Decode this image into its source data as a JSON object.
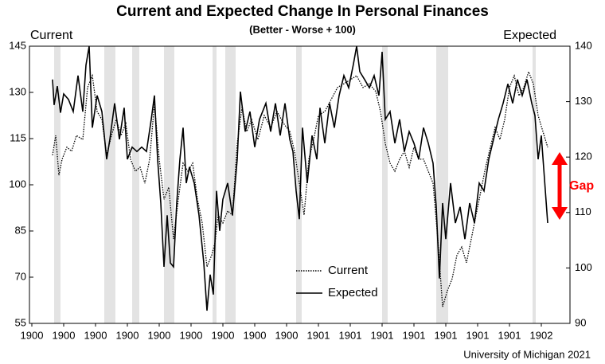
{
  "chart_data": {
    "type": "line",
    "title": "Current and Expected Change In Personal Finances",
    "subtitle": "(Better - Worse + 100)",
    "ylabel": "Current",
    "y2label": "Expected",
    "annotation": "Gap",
    "source": "University of Michigan 2021",
    "xlim": [
      -0.075,
      16.9
    ],
    "xticks": [
      {
        "value": 0,
        "label": "1900"
      },
      {
        "value": 1,
        "label": "1900"
      },
      {
        "value": 2,
        "label": "1900"
      },
      {
        "value": 3,
        "label": "1900"
      },
      {
        "value": 4,
        "label": "1900"
      },
      {
        "value": 5,
        "label": "1900"
      },
      {
        "value": 6,
        "label": "1900"
      },
      {
        "value": 7,
        "label": "1900"
      },
      {
        "value": 8,
        "label": "1900"
      },
      {
        "value": 9,
        "label": "1901"
      },
      {
        "value": 10,
        "label": "1901"
      },
      {
        "value": 11,
        "label": "1901"
      },
      {
        "value": 12,
        "label": "1901"
      },
      {
        "value": 13,
        "label": "1901"
      },
      {
        "value": 14,
        "label": "1901"
      },
      {
        "value": 15,
        "label": "1901"
      },
      {
        "value": 16,
        "label": "1902"
      }
    ],
    "ylim": [
      55,
      145
    ],
    "yticks": [
      55,
      70,
      85,
      100,
      115,
      130,
      145
    ],
    "y2lim": [
      90,
      140
    ],
    "y2ticks": [
      90,
      100,
      110,
      120,
      130,
      140
    ],
    "recessions": [
      [
        0.7,
        0.9
      ],
      [
        2.275,
        2.625
      ],
      [
        3.15,
        3.375
      ],
      [
        4.15,
        4.475
      ],
      [
        5.675,
        5.8
      ],
      [
        6.075,
        6.4
      ],
      [
        8.3,
        8.475
      ],
      [
        11,
        11.175
      ],
      [
        12.7,
        13.075
      ],
      [
        15.725,
        15.825
      ]
    ],
    "recession_color": "#e3e3e3",
    "annotation_color": "#ff0000",
    "series": [
      {
        "name": "Current",
        "color": "#000000",
        "style": "dotted",
        "axis": "y",
        "x": [
          0.65,
          0.75,
          0.85,
          0.95,
          1.1,
          1.25,
          1.4,
          1.6,
          1.75,
          1.9,
          2.05,
          2.2,
          2.35,
          2.5,
          2.65,
          2.8,
          2.95,
          3.1,
          3.25,
          3.4,
          3.55,
          3.7,
          3.85,
          4.0,
          4.15,
          4.3,
          4.45,
          4.6,
          4.75,
          4.9,
          5.05,
          5.2,
          5.35,
          5.5,
          5.65,
          5.75,
          5.85,
          6.0,
          6.15,
          6.3,
          6.45,
          6.6,
          6.75,
          6.9,
          7.1,
          7.3,
          7.5,
          7.7,
          7.9,
          8.1,
          8.25,
          8.4,
          8.55,
          8.7,
          8.85,
          9.0,
          9.2,
          9.4,
          9.6,
          9.8,
          10.0,
          10.2,
          10.4,
          10.6,
          10.8,
          10.95,
          11.1,
          11.25,
          11.4,
          11.55,
          11.7,
          11.85,
          12.0,
          12.15,
          12.3,
          12.45,
          12.6,
          12.75,
          12.9,
          13.05,
          13.2,
          13.35,
          13.5,
          13.65,
          13.8,
          13.95,
          14.1,
          14.25,
          14.4,
          14.55,
          14.7,
          14.85,
          15.0,
          15.15,
          15.3,
          15.45,
          15.6,
          15.75,
          15.9,
          16.05,
          16.2
        ],
        "values": [
          109.6,
          116,
          103.1,
          108.3,
          112.2,
          110.9,
          116,
          114.7,
          131.6,
          135.4,
          123.8,
          121.2,
          109.6,
          116,
          121.2,
          116,
          119.9,
          108.3,
          104.4,
          105.7,
          100.5,
          108.3,
          126.4,
          108.3,
          95.3,
          99.2,
          82.4,
          95.3,
          107,
          104.4,
          107,
          95.3,
          87.6,
          73.4,
          77.2,
          81.1,
          90.2,
          87.6,
          91.5,
          90.2,
          113.4,
          125.1,
          117.3,
          121.2,
          114.7,
          122.5,
          118.6,
          123.8,
          120,
          117.3,
          110.9,
          100.5,
          90.2,
          108.3,
          114.7,
          122.5,
          123.8,
          127.7,
          131.6,
          132.8,
          134.1,
          135.4,
          131.6,
          132.8,
          130.3,
          123.8,
          113.4,
          107,
          104.4,
          108.3,
          110.9,
          105.7,
          112.2,
          108.3,
          108.3,
          104.4,
          100.5,
          82.4,
          60.4,
          65.6,
          69.5,
          77.2,
          79.8,
          74.7,
          82.4,
          90.2,
          97.9,
          105.7,
          112.2,
          118.6,
          114.7,
          121.2,
          131.6,
          135.4,
          128.9,
          131.6,
          136.7,
          132.8,
          122.5,
          117.3,
          112.2
        ]
      },
      {
        "name": "Expected",
        "color": "#000000",
        "style": "solid",
        "axis": "y2",
        "x": [
          0.65,
          0.7,
          0.8,
          0.9,
          1.0,
          1.15,
          1.3,
          1.45,
          1.6,
          1.7,
          1.8,
          1.9,
          2.05,
          2.2,
          2.35,
          2.45,
          2.6,
          2.75,
          2.9,
          3.0,
          3.15,
          3.3,
          3.45,
          3.6,
          3.75,
          3.85,
          3.95,
          4.05,
          4.15,
          4.25,
          4.35,
          4.45,
          4.55,
          4.65,
          4.75,
          4.85,
          4.95,
          5.1,
          5.25,
          5.4,
          5.5,
          5.6,
          5.7,
          5.8,
          5.9,
          6.0,
          6.15,
          6.3,
          6.45,
          6.55,
          6.7,
          6.85,
          7.0,
          7.15,
          7.35,
          7.5,
          7.65,
          7.8,
          7.95,
          8.1,
          8.2,
          8.3,
          8.4,
          8.5,
          8.65,
          8.8,
          8.95,
          9.05,
          9.2,
          9.35,
          9.5,
          9.65,
          9.8,
          9.95,
          10.1,
          10.2,
          10.3,
          10.45,
          10.6,
          10.75,
          10.9,
          11.0,
          11.1,
          11.25,
          11.4,
          11.55,
          11.7,
          11.85,
          12.0,
          12.15,
          12.3,
          12.45,
          12.6,
          12.7,
          12.8,
          12.9,
          13.0,
          13.15,
          13.3,
          13.45,
          13.6,
          13.75,
          13.9,
          14.05,
          14.2,
          14.35,
          14.5,
          14.65,
          14.8,
          14.95,
          15.1,
          15.25,
          15.4,
          15.55,
          15.7,
          15.8,
          15.9,
          16.0,
          16.1,
          16.2
        ],
        "values": [
          134,
          129.4,
          132.8,
          128,
          131.4,
          130.4,
          128.2,
          134.7,
          128.2,
          136.6,
          140,
          125.3,
          131.1,
          128.2,
          119.6,
          123.2,
          129.7,
          123.2,
          128.9,
          119.6,
          121.8,
          121,
          121.8,
          121,
          126.8,
          131.1,
          119.6,
          111.7,
          100.2,
          109.5,
          100.9,
          100.2,
          111.7,
          119.6,
          125.3,
          115.3,
          118.2,
          115.3,
          109.5,
          100.9,
          92.3,
          98.8,
          95.2,
          113.9,
          106.7,
          112.4,
          115.3,
          109.5,
          119.6,
          131.8,
          124.6,
          128.2,
          121.8,
          126.8,
          129.7,
          124.6,
          129.7,
          123.9,
          129.7,
          123.2,
          121,
          113.9,
          108.8,
          125.3,
          115.3,
          123.9,
          119.6,
          128.9,
          122.5,
          129.7,
          125.3,
          131.1,
          134.7,
          132.5,
          136.8,
          140,
          135.4,
          134,
          132.5,
          134.7,
          131.1,
          139,
          126.8,
          128.2,
          122.5,
          126.8,
          121,
          124.6,
          122.5,
          119.6,
          125.3,
          122.5,
          118.9,
          111,
          98.1,
          111.7,
          105.2,
          115.3,
          108.1,
          111,
          105.2,
          111.7,
          108.1,
          115.3,
          113.9,
          119.6,
          123.2,
          126.8,
          129.7,
          133.2,
          129.7,
          134,
          131.1,
          134,
          129.7,
          127.5,
          119.6,
          123.9,
          116,
          108.1
        ]
      }
    ]
  }
}
